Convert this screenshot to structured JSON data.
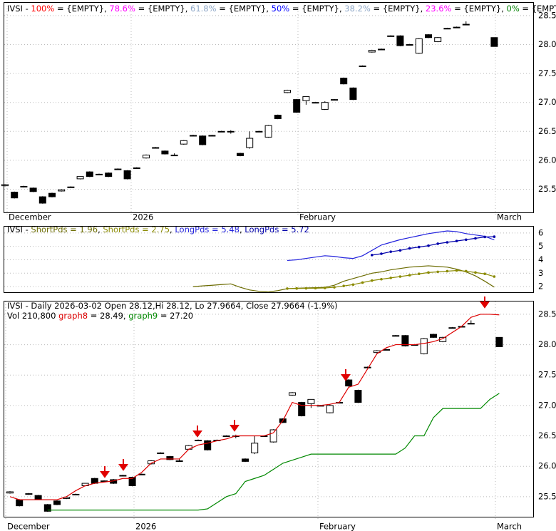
{
  "chart_data": [
    {
      "type": "candlestick",
      "header": [
        [
          {
            "text": "IVSI",
            "color": "#000000"
          },
          {
            "text": " - ",
            "color": "#000000"
          },
          {
            "text": "100%",
            "color": "#ff0000"
          },
          {
            "text": " = {EMPTY}, ",
            "color": "#000000"
          },
          {
            "text": "78.6%",
            "color": "#ff00ff"
          },
          {
            "text": " = {EMPTY}, ",
            "color": "#000000"
          },
          {
            "text": "61.8%",
            "color": "#8fa8c8"
          },
          {
            "text": " = {EMPTY}, ",
            "color": "#000000"
          },
          {
            "text": "50%",
            "color": "#0000ff"
          },
          {
            "text": " = {EMPTY}, ",
            "color": "#000000"
          },
          {
            "text": "38.2%",
            "color": "#8fa8c8"
          },
          {
            "text": " = {EMPTY}, ",
            "color": "#000000"
          },
          {
            "text": "23.6%",
            "color": "#ff00ff"
          },
          {
            "text": " = {EMPTY}, ",
            "color": "#000000"
          },
          {
            "text": "0%",
            "color": "#008000"
          },
          {
            "text": " = {EMPTY}",
            "color": "#000000"
          }
        ]
      ],
      "x_labels": [
        "December",
        "2026",
        "February",
        "March"
      ],
      "open": [
        25.56,
        25.45,
        25.55,
        25.52,
        25.37,
        25.43,
        25.47,
        25.54,
        25.68,
        25.8,
        25.76,
        25.78,
        25.85,
        25.82,
        25.87,
        26.04,
        26.22,
        26.16,
        26.09,
        26.28,
        26.43,
        26.42,
        26.43,
        26.5,
        26.5,
        26.12,
        26.22,
        26.5,
        26.4,
        26.78,
        27.17,
        27.05,
        27.03,
        27.0,
        26.88,
        27.05,
        27.42,
        27.25,
        27.63,
        27.87,
        27.92,
        28.15,
        28.15,
        28.0,
        27.85,
        28.17,
        28.05,
        28.28,
        28.3,
        28.35,
        null,
        null,
        28.12
      ],
      "high": [
        25.59,
        25.46,
        25.56,
        25.53,
        25.38,
        25.44,
        25.5,
        25.55,
        25.72,
        25.81,
        25.77,
        25.79,
        25.86,
        25.83,
        25.88,
        26.1,
        26.23,
        26.17,
        26.12,
        26.35,
        26.44,
        26.43,
        26.44,
        26.51,
        26.52,
        26.13,
        26.5,
        26.51,
        26.61,
        26.79,
        27.22,
        27.06,
        27.1,
        27.01,
        27.02,
        27.06,
        27.43,
        27.26,
        27.64,
        27.91,
        27.93,
        28.16,
        28.16,
        28.01,
        28.11,
        28.18,
        28.13,
        28.29,
        28.31,
        28.4,
        null,
        null,
        28.12
      ],
      "low": [
        25.55,
        25.34,
        25.53,
        25.45,
        25.25,
        25.36,
        25.46,
        25.53,
        25.67,
        25.71,
        25.75,
        25.71,
        25.84,
        25.67,
        25.86,
        26.03,
        26.21,
        26.1,
        26.08,
        26.27,
        26.42,
        26.26,
        26.42,
        26.49,
        26.46,
        26.07,
        26.2,
        26.49,
        26.39,
        26.71,
        27.16,
        26.82,
        26.96,
        26.99,
        26.87,
        27.04,
        27.31,
        27.04,
        27.62,
        27.86,
        27.91,
        28.14,
        27.97,
        27.99,
        27.84,
        28.11,
        28.04,
        28.27,
        28.29,
        28.34,
        null,
        null,
        27.9664
      ],
      "close": [
        25.58,
        25.35,
        25.54,
        25.46,
        25.26,
        25.37,
        25.49,
        25.54,
        25.72,
        25.72,
        25.76,
        25.72,
        25.85,
        25.68,
        25.87,
        26.09,
        26.22,
        26.11,
        26.09,
        26.34,
        26.43,
        26.27,
        26.43,
        26.5,
        26.5,
        26.08,
        26.38,
        26.5,
        26.6,
        26.72,
        27.21,
        26.83,
        27.1,
        27.0,
        27.0,
        27.05,
        27.32,
        27.05,
        27.63,
        27.9,
        27.92,
        28.15,
        27.98,
        28.0,
        28.1,
        28.12,
        28.12,
        28.28,
        28.3,
        28.35,
        null,
        null,
        27.9664
      ],
      "up_color": "#ffffff",
      "down_color": "#000000",
      "ylim": [
        25.1,
        28.72
      ],
      "yticks": [
        25.5,
        {
          "value": 26,
          "label": "26.0"
        },
        26.5,
        {
          "value": 27,
          "label": "27.0"
        },
        27.5,
        {
          "value": 28,
          "label": "28.0"
        },
        28.5
      ],
      "grid": true
    },
    {
      "type": "line",
      "header": [
        [
          {
            "text": "IVSI - ",
            "color": "#000000"
          },
          {
            "text": "ShortPds = 1.96",
            "color": "#6b6b00"
          },
          {
            "text": ", ",
            "color": "#000000"
          },
          {
            "text": "ShortPds = 2.75",
            "color": "#8a8a00"
          },
          {
            "text": ", ",
            "color": "#000000"
          },
          {
            "text": "LongPds = 5.48",
            "color": "#2222dd"
          },
          {
            "text": ", ",
            "color": "#000000"
          },
          {
            "text": "LongPds = 5.72",
            "color": "#0000aa"
          }
        ]
      ],
      "series": [
        {
          "name": "ShortPds",
          "color": "#6b6b00",
          "dotted": false,
          "values": [
            null,
            null,
            null,
            null,
            null,
            null,
            null,
            null,
            null,
            null,
            null,
            null,
            null,
            null,
            null,
            null,
            null,
            null,
            null,
            null,
            2.0,
            2.05,
            2.1,
            2.15,
            2.2,
            1.95,
            1.75,
            1.65,
            1.6,
            1.7,
            1.85,
            1.88,
            1.9,
            1.92,
            1.95,
            2.1,
            2.4,
            2.6,
            2.8,
            3.0,
            3.1,
            3.25,
            3.35,
            3.45,
            3.5,
            3.55,
            3.5,
            3.45,
            3.3,
            3.1,
            2.8,
            2.4,
            1.96
          ]
        },
        {
          "name": "ShortPds",
          "color": "#8a8a00",
          "dotted": true,
          "values": [
            null,
            null,
            null,
            null,
            null,
            null,
            null,
            null,
            null,
            null,
            null,
            null,
            null,
            null,
            null,
            null,
            null,
            null,
            null,
            null,
            null,
            null,
            null,
            null,
            null,
            null,
            null,
            null,
            null,
            null,
            1.85,
            1.86,
            1.87,
            1.88,
            1.9,
            1.95,
            2.05,
            2.15,
            2.3,
            2.45,
            2.55,
            2.65,
            2.75,
            2.85,
            2.95,
            3.05,
            3.1,
            3.15,
            3.2,
            3.15,
            3.05,
            2.95,
            2.75
          ]
        },
        {
          "name": "LongPds",
          "color": "#2222dd",
          "dotted": false,
          "values": [
            null,
            null,
            null,
            null,
            null,
            null,
            null,
            null,
            null,
            null,
            null,
            null,
            null,
            null,
            null,
            null,
            null,
            null,
            null,
            null,
            null,
            null,
            null,
            null,
            null,
            null,
            null,
            null,
            null,
            null,
            3.95,
            4.0,
            4.1,
            4.2,
            4.3,
            4.25,
            4.15,
            4.1,
            4.3,
            4.7,
            5.1,
            5.3,
            5.5,
            5.65,
            5.8,
            5.95,
            6.05,
            6.15,
            6.1,
            5.95,
            5.85,
            5.75,
            5.48
          ]
        },
        {
          "name": "LongPds",
          "color": "#0000aa",
          "dotted": true,
          "values": [
            null,
            null,
            null,
            null,
            null,
            null,
            null,
            null,
            null,
            null,
            null,
            null,
            null,
            null,
            null,
            null,
            null,
            null,
            null,
            null,
            null,
            null,
            null,
            null,
            null,
            null,
            null,
            null,
            null,
            null,
            null,
            null,
            null,
            null,
            null,
            null,
            null,
            null,
            null,
            4.35,
            4.45,
            4.6,
            4.7,
            4.85,
            4.95,
            5.05,
            5.2,
            5.3,
            5.4,
            5.5,
            5.6,
            5.7,
            5.72
          ]
        }
      ],
      "ylim": [
        1.58,
        6.47
      ],
      "yticks": [
        2,
        3,
        4,
        5,
        6
      ],
      "grid": true
    },
    {
      "type": "candlestick",
      "header": [
        [
          {
            "text": "IVSI - Daily 2026-03-02 Open 28.12,Hi 28.12, Lo 27.9664, Close 27.9664 (-1.9%)",
            "color": "#000000"
          }
        ],
        [
          {
            "text": "Vol 210,800 ",
            "color": "#000000"
          },
          {
            "text": "graph8",
            "color": "#dd0000"
          },
          {
            "text": " = 28.49, ",
            "color": "#000000"
          },
          {
            "text": "graph9",
            "color": "#008800"
          },
          {
            "text": " = 27.20",
            "color": "#000000"
          }
        ]
      ],
      "x_labels": [
        "December",
        "2026",
        "February",
        "March"
      ],
      "series": [
        {
          "name": "graph8",
          "color": "#dd0000",
          "dotted": false,
          "values": [
            25.5,
            25.45,
            25.45,
            25.45,
            25.45,
            25.45,
            25.5,
            25.6,
            25.68,
            25.72,
            25.74,
            25.76,
            25.8,
            25.8,
            25.9,
            26.05,
            26.12,
            26.12,
            26.12,
            26.28,
            26.35,
            26.38,
            26.42,
            26.45,
            26.5,
            26.5,
            26.5,
            26.5,
            26.55,
            26.75,
            27.05,
            27.0,
            27.0,
            27.0,
            27.02,
            27.05,
            27.3,
            27.35,
            27.6,
            27.85,
            27.95,
            28.0,
            28.0,
            28.0,
            28.02,
            28.05,
            28.1,
            28.2,
            28.3,
            28.45,
            28.5,
            28.5,
            28.49
          ]
        },
        {
          "name": "graph9",
          "color": "#008800",
          "dotted": false,
          "values": [
            null,
            null,
            null,
            null,
            25.28,
            25.28,
            25.28,
            25.28,
            25.28,
            25.28,
            25.28,
            25.28,
            25.28,
            25.28,
            25.28,
            25.28,
            25.28,
            25.28,
            25.28,
            25.28,
            25.28,
            25.3,
            25.4,
            25.5,
            25.55,
            25.75,
            25.8,
            25.85,
            25.95,
            26.05,
            26.1,
            26.15,
            26.2,
            26.2,
            26.2,
            26.2,
            26.2,
            26.2,
            26.2,
            26.2,
            26.2,
            26.2,
            26.3,
            26.5,
            26.5,
            26.8,
            26.95,
            26.95,
            26.95,
            26.95,
            26.95,
            27.1,
            27.2
          ]
        }
      ],
      "ylim": [
        25.17,
        28.71
      ],
      "yticks": [
        25.5,
        {
          "value": 26,
          "label": "26.0"
        },
        26.5,
        {
          "value": 27,
          "label": "27.0"
        },
        27.5,
        {
          "value": 28,
          "label": "28.0"
        },
        28.5
      ],
      "grid": true
    }
  ]
}
